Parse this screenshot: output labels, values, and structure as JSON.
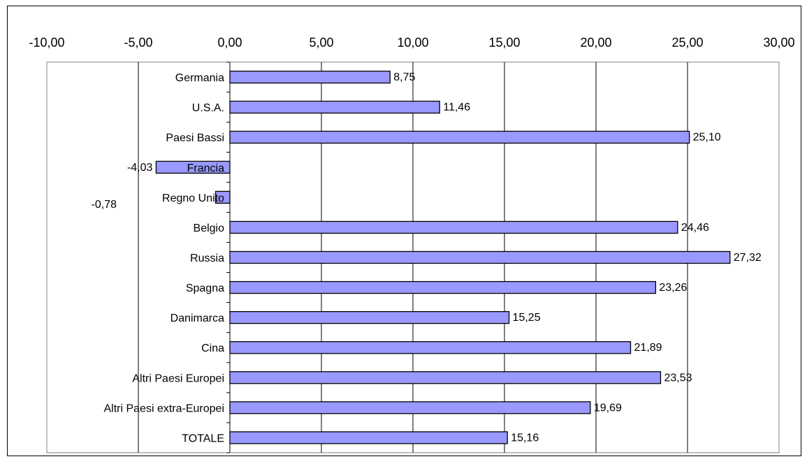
{
  "chart_data": {
    "type": "bar",
    "orientation": "horizontal",
    "categories": [
      "Germania",
      "U.S.A.",
      "Paesi Bassi",
      "Francia",
      "Regno Unito",
      "Belgio",
      "Russia",
      "Spagna",
      "Danimarca",
      "Cina",
      "Altri Paesi Europei",
      "Altri Paesi extra-Europei",
      "TOTALE"
    ],
    "values": [
      8.75,
      11.46,
      25.1,
      -4.03,
      -0.78,
      24.46,
      27.32,
      23.26,
      15.25,
      21.89,
      23.53,
      19.69,
      15.16
    ],
    "value_labels": [
      "8,75",
      "11,46",
      "25,10",
      "-4,03",
      "-0,78",
      "24,46",
      "27,32",
      "23,26",
      "15,25",
      "21,89",
      "23,53",
      "19,69",
      "15,16"
    ],
    "xlim": [
      -10,
      30
    ],
    "x_ticks": [
      -10,
      -5,
      0,
      5,
      10,
      15,
      20,
      25,
      30
    ],
    "x_tick_labels": [
      "-10,00",
      "-5,00",
      "0,00",
      "5,00",
      "10,00",
      "15,00",
      "20,00",
      "25,00",
      "30,00"
    ],
    "x_axis_position": "top",
    "grid": true,
    "bar_color": "#9999ff",
    "bar_edge_color": "#000000",
    "gridline_color": "#000000",
    "plot_border_color": "#808080"
  }
}
